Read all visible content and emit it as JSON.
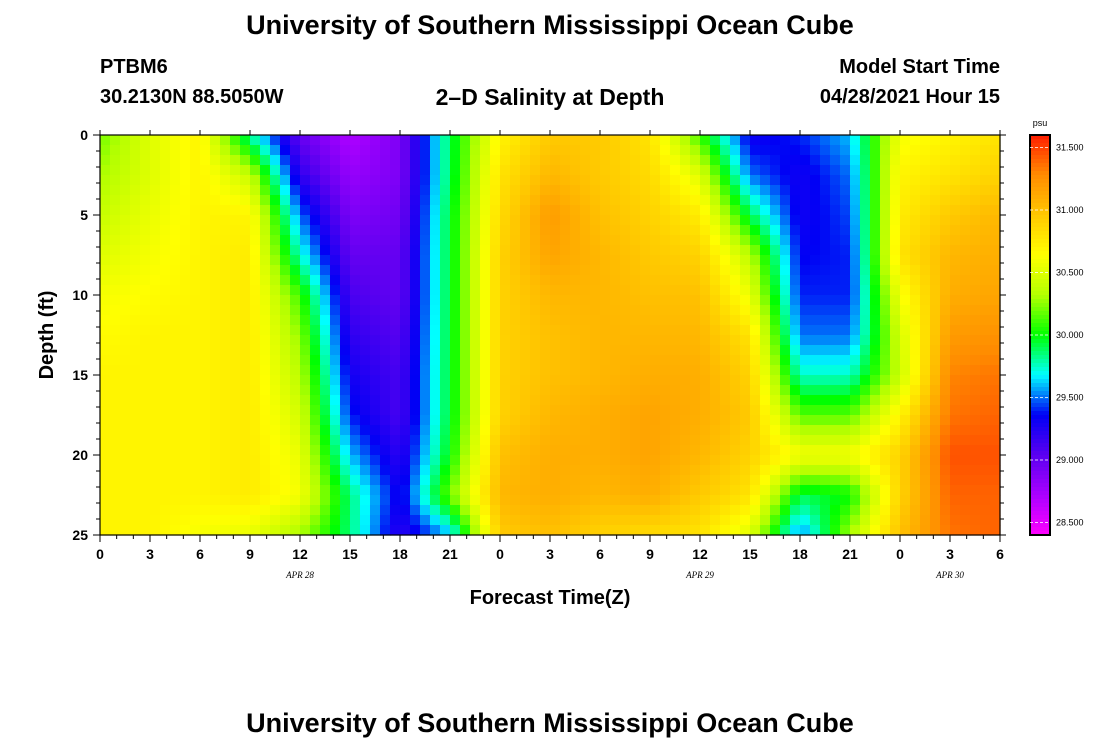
{
  "header": {
    "title": "University of Southern Mississippi Ocean Cube",
    "station": "PTBM6",
    "coords": "30.2130N  88.5050W",
    "subtitle": "2–D Salinity at Depth",
    "model_start_label": "Model Start Time",
    "model_start_value": "04/28/2021 Hour 15"
  },
  "footer": {
    "title": "University of Southern Mississippi Ocean Cube"
  },
  "colors": {
    "scale": [
      "#ff00ff",
      "#aa00ff",
      "#5a00f0",
      "#0000f5",
      "#00ffff",
      "#00ff00",
      "#b4ff00",
      "#ffff00",
      "#ffc800",
      "#ff8c00",
      "#ff1e00"
    ]
  },
  "chart_data": {
    "type": "heatmap",
    "title": "2–D Salinity at Depth",
    "xlabel": "Forecast Time(Z)",
    "ylabel": "Depth (ft)",
    "x_tick_labels": [
      "0",
      "3",
      "6",
      "9",
      "12",
      "15",
      "18",
      "21",
      "0",
      "3",
      "6",
      "9",
      "12",
      "15",
      "18",
      "21",
      "0",
      "3",
      "6"
    ],
    "date_labels": [
      "APR  28",
      "APR  29",
      "APR  30"
    ],
    "date_label_tick_index": [
      4,
      12,
      17
    ],
    "y_ticks": [
      0,
      5,
      10,
      15,
      20,
      25
    ],
    "ylim": [
      0,
      25
    ],
    "x_hours_range": [
      0,
      54
    ],
    "colorbar": {
      "unit": "psu",
      "range": [
        28.4,
        31.6
      ],
      "labels": [
        "31.500",
        "31.000",
        "30.500",
        "30.000",
        "29.500",
        "29.000",
        "28.500"
      ],
      "values": [
        31.5,
        31.0,
        30.5,
        30.0,
        29.5,
        29.0,
        28.5
      ]
    },
    "hours": [
      0,
      3,
      6,
      9,
      12,
      15,
      18,
      21,
      24,
      27,
      30,
      33,
      36,
      39,
      42,
      45,
      48,
      51,
      54
    ],
    "depths": [
      0,
      2.5,
      5,
      7.5,
      10,
      12.5,
      15,
      17.5,
      20,
      22.5,
      25
    ],
    "values": [
      [
        30.2,
        30.5,
        30.7,
        29.8,
        29.0,
        28.7,
        28.9,
        29.9,
        30.7,
        30.95,
        30.95,
        30.8,
        30.1,
        29.3,
        29.4,
        29.6,
        30.6,
        30.7,
        30.8
      ],
      [
        30.3,
        30.5,
        30.7,
        30.4,
        29.2,
        28.8,
        28.9,
        29.9,
        30.8,
        31.05,
        30.95,
        30.85,
        30.5,
        29.5,
        29.3,
        29.5,
        30.7,
        30.8,
        30.9
      ],
      [
        30.4,
        30.55,
        30.7,
        30.7,
        29.5,
        28.9,
        28.95,
        29.95,
        30.85,
        31.2,
        31.0,
        30.9,
        30.75,
        29.9,
        29.3,
        29.45,
        30.75,
        30.95,
        31.05
      ],
      [
        30.5,
        30.6,
        30.7,
        30.75,
        29.75,
        29.0,
        29.0,
        29.95,
        30.9,
        31.15,
        31.05,
        30.95,
        30.9,
        30.35,
        29.35,
        29.4,
        30.8,
        31.05,
        31.1
      ],
      [
        30.6,
        30.65,
        30.7,
        30.75,
        30.1,
        29.1,
        29.0,
        29.95,
        30.9,
        31.05,
        31.05,
        31.0,
        31.0,
        30.55,
        29.4,
        29.4,
        30.6,
        31.1,
        31.15
      ],
      [
        30.65,
        30.7,
        30.7,
        30.75,
        30.25,
        29.2,
        29.05,
        29.95,
        30.9,
        31.0,
        31.05,
        31.05,
        31.05,
        30.8,
        29.5,
        29.5,
        30.45,
        31.2,
        31.25
      ],
      [
        30.7,
        30.7,
        30.7,
        30.75,
        30.35,
        29.3,
        29.1,
        29.95,
        30.9,
        31.0,
        31.05,
        31.1,
        31.1,
        30.9,
        29.75,
        29.75,
        30.4,
        31.3,
        31.35
      ],
      [
        30.7,
        30.7,
        30.7,
        30.75,
        30.45,
        29.4,
        29.1,
        29.95,
        30.9,
        31.05,
        31.1,
        31.15,
        31.1,
        30.95,
        30.15,
        30.15,
        30.7,
        31.35,
        31.4
      ],
      [
        30.7,
        30.7,
        30.7,
        30.75,
        30.55,
        29.6,
        29.2,
        30.0,
        31.0,
        31.1,
        31.1,
        31.15,
        31.05,
        30.9,
        30.6,
        30.6,
        30.9,
        31.45,
        31.45
      ],
      [
        30.7,
        30.7,
        30.7,
        30.75,
        30.6,
        29.85,
        29.3,
        30.2,
        31.05,
        31.1,
        31.05,
        31.1,
        30.95,
        30.8,
        29.9,
        30.0,
        30.9,
        31.4,
        31.4
      ],
      [
        30.7,
        30.7,
        30.6,
        30.55,
        30.3,
        29.85,
        29.2,
        29.6,
        30.95,
        31.0,
        30.9,
        30.85,
        30.8,
        30.5,
        29.5,
        30.3,
        31.0,
        31.35,
        31.4
      ]
    ]
  }
}
